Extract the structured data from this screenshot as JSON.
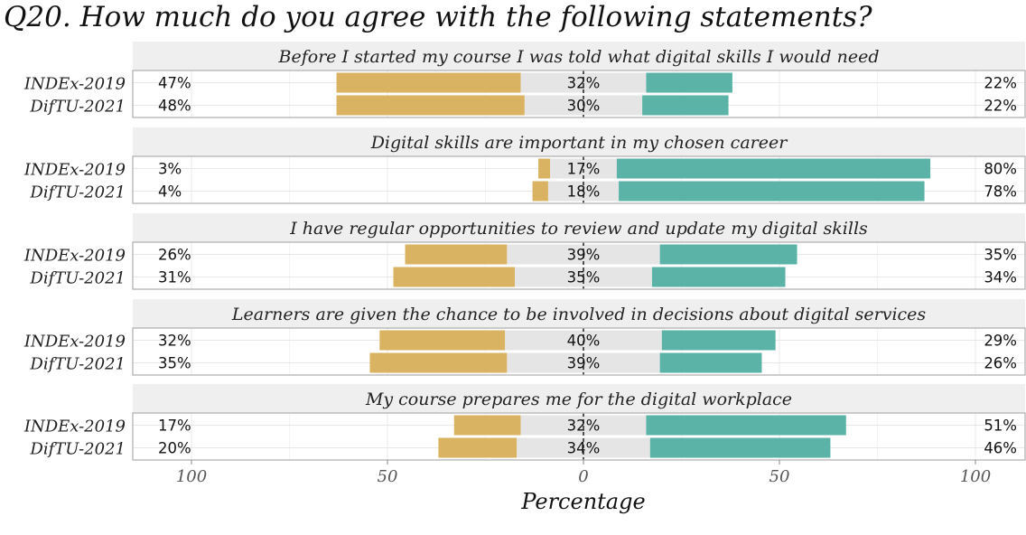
{
  "chart_data": {
    "type": "bar",
    "subtype": "diverging-stacked-likert",
    "title": "Q20. How much do you agree with the following statements?",
    "xlabel": "Percentage",
    "xlim": [
      -100,
      100
    ],
    "x_ticks": [
      -100,
      -50,
      0,
      50,
      100
    ],
    "x_tick_labels": [
      "100",
      "50",
      "0",
      "50",
      "100"
    ],
    "colors": {
      "disagree": "#D9B362",
      "neutral": "#E5E5E5",
      "agree": "#5BB3A8",
      "strip_bg": "#EFEFEF"
    },
    "panels": [
      {
        "statement": "Before I started my course I was told what digital skills I would need",
        "rows": [
          {
            "label": "INDEx-2019",
            "disagree": 47,
            "neutral": 32,
            "agree": 22,
            "disagree_label": "47%",
            "neutral_label": "32%",
            "agree_label": "22%"
          },
          {
            "label": "DifTU-2021",
            "disagree": 48,
            "neutral": 30,
            "agree": 22,
            "disagree_label": "48%",
            "neutral_label": "30%",
            "agree_label": "22%"
          }
        ]
      },
      {
        "statement": "Digital skills are important in my chosen career",
        "rows": [
          {
            "label": "INDEx-2019",
            "disagree": 3,
            "neutral": 17,
            "agree": 80,
            "disagree_label": "3%",
            "neutral_label": "17%",
            "agree_label": "80%"
          },
          {
            "label": "DifTU-2021",
            "disagree": 4,
            "neutral": 18,
            "agree": 78,
            "disagree_label": "4%",
            "neutral_label": "18%",
            "agree_label": "78%"
          }
        ]
      },
      {
        "statement": "I have regular opportunities to review and update my digital skills",
        "rows": [
          {
            "label": "INDEx-2019",
            "disagree": 26,
            "neutral": 39,
            "agree": 35,
            "disagree_label": "26%",
            "neutral_label": "39%",
            "agree_label": "35%"
          },
          {
            "label": "DifTU-2021",
            "disagree": 31,
            "neutral": 35,
            "agree": 34,
            "disagree_label": "31%",
            "neutral_label": "35%",
            "agree_label": "34%"
          }
        ]
      },
      {
        "statement": "Learners are given the chance to be involved in decisions about digital services",
        "rows": [
          {
            "label": "INDEx-2019",
            "disagree": 32,
            "neutral": 40,
            "agree": 29,
            "disagree_label": "32%",
            "neutral_label": "40%",
            "agree_label": "29%"
          },
          {
            "label": "DifTU-2021",
            "disagree": 35,
            "neutral": 39,
            "agree": 26,
            "disagree_label": "35%",
            "neutral_label": "39%",
            "agree_label": "26%"
          }
        ]
      },
      {
        "statement": "My course prepares me for the digital workplace",
        "rows": [
          {
            "label": "INDEx-2019",
            "disagree": 17,
            "neutral": 32,
            "agree": 51,
            "disagree_label": "17%",
            "neutral_label": "32%",
            "agree_label": "51%"
          },
          {
            "label": "DifTU-2021",
            "disagree": 20,
            "neutral": 34,
            "agree": 46,
            "disagree_label": "20%",
            "neutral_label": "34%",
            "agree_label": "46%"
          }
        ]
      }
    ]
  }
}
